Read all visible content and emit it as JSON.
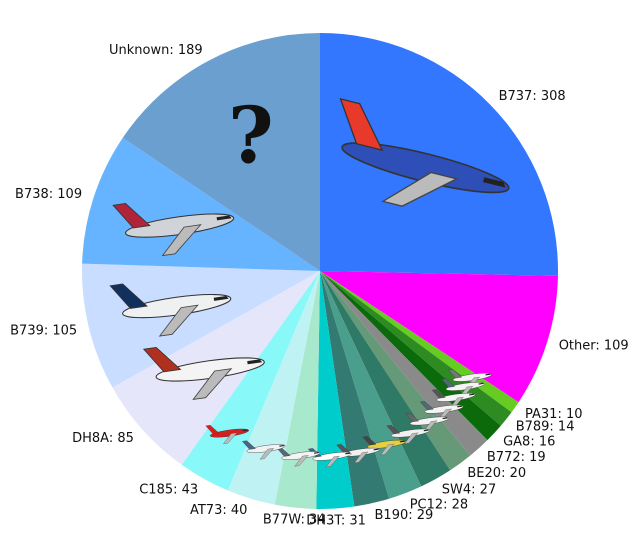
{
  "chart_data": {
    "type": "pie",
    "start_angle_deg": 90,
    "direction": "clockwise",
    "slices": [
      {
        "label": "B737",
        "value": 308,
        "color": "#3377ff",
        "icon": "southwest-airliner"
      },
      {
        "label": "Other",
        "value": 109,
        "color": "#ff00ff"
      },
      {
        "label": "PA31",
        "value": 10,
        "color": "#66cc22",
        "icon": "small-twin-plane"
      },
      {
        "label": "B789",
        "value": 14,
        "color": "#2e8b22",
        "icon": "widebody-airliner"
      },
      {
        "label": "GA8",
        "value": 16,
        "color": "#0b6b0b",
        "icon": "utility-plane"
      },
      {
        "label": "B772",
        "value": 19,
        "color": "#8a8a8a",
        "icon": "widebody-airliner"
      },
      {
        "label": "BE20",
        "value": 20,
        "color": "#669977",
        "icon": "turboprop-plane"
      },
      {
        "label": "SW4",
        "value": 27,
        "color": "#2f7a66",
        "icon": "commuter-plane"
      },
      {
        "label": "PC12",
        "value": 28,
        "color": "#4a9e8c",
        "icon": "single-turboprop"
      },
      {
        "label": "B190",
        "value": 29,
        "color": "#327a72",
        "icon": "commuter-plane"
      },
      {
        "label": "DH3T",
        "value": 31,
        "color": "#00cccc",
        "icon": "floatplane"
      },
      {
        "label": "B77W",
        "value": 34,
        "color": "#a8e8cc",
        "icon": "widebody-airliner"
      },
      {
        "label": "AT73",
        "value": 40,
        "color": "#bff3f3",
        "icon": "turboprop-airliner"
      },
      {
        "label": "C185",
        "value": 43,
        "color": "#88f8f8",
        "icon": "red-floatplane"
      },
      {
        "label": "DH8A",
        "value": 85,
        "color": "#e6e6fa",
        "icon": "dash8-plane"
      },
      {
        "label": "B739",
        "value": 105,
        "color": "#c8ddff",
        "icon": "alaska-airliner"
      },
      {
        "label": "B738",
        "value": 109,
        "color": "#66b3ff",
        "icon": "american-airliner"
      },
      {
        "label": "Unknown",
        "value": 189,
        "color": "#6a9fd0",
        "icon": "question-mark"
      }
    ]
  }
}
